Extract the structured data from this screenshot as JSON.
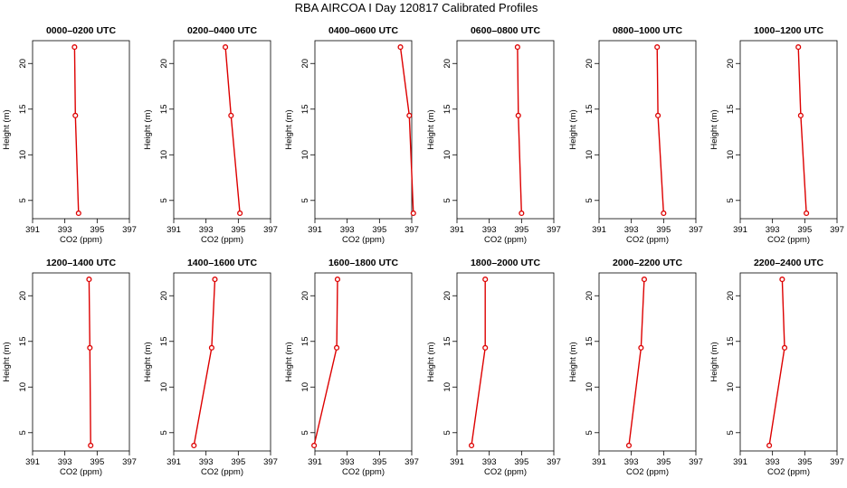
{
  "title": "RBA AIRCOA I  Day 120817  Calibrated Profiles",
  "colors": {
    "series": "#dd0000",
    "axis": "#000000",
    "background": "#ffffff"
  },
  "chart_data": [
    {
      "type": "line",
      "title": "0000–0200 UTC",
      "xlabel": "CO2 (ppm)",
      "ylabel": "Height (m)",
      "xlim": [
        391,
        397
      ],
      "ylim": [
        3,
        22.5
      ],
      "xticks": [
        391,
        393,
        395,
        397
      ],
      "yticks": [
        5,
        10,
        15,
        20
      ],
      "series": [
        {
          "x": [
            393.85,
            393.65,
            393.6
          ],
          "y": [
            3.6,
            14.3,
            21.8
          ]
        }
      ]
    },
    {
      "type": "line",
      "title": "0200–0400 UTC",
      "xlabel": "CO2 (ppm)",
      "ylabel": "Height (m)",
      "xlim": [
        391,
        397
      ],
      "ylim": [
        3,
        22.5
      ],
      "xticks": [
        391,
        393,
        395,
        397
      ],
      "yticks": [
        5,
        10,
        15,
        20
      ],
      "series": [
        {
          "x": [
            395.1,
            394.55,
            394.2
          ],
          "y": [
            3.6,
            14.3,
            21.8
          ]
        }
      ]
    },
    {
      "type": "line",
      "title": "0400–0600 UTC",
      "xlabel": "CO2 (ppm)",
      "ylabel": "Height (m)",
      "xlim": [
        391,
        397
      ],
      "ylim": [
        3,
        22.5
      ],
      "xticks": [
        391,
        393,
        395,
        397
      ],
      "yticks": [
        5,
        10,
        15,
        20
      ],
      "series": [
        {
          "x": [
            397.1,
            396.85,
            396.3
          ],
          "y": [
            3.6,
            14.3,
            21.8
          ]
        }
      ]
    },
    {
      "type": "line",
      "title": "0600–0800 UTC",
      "xlabel": "CO2 (ppm)",
      "ylabel": "Height (m)",
      "xlim": [
        391,
        397
      ],
      "ylim": [
        3,
        22.5
      ],
      "xticks": [
        391,
        393,
        395,
        397
      ],
      "yticks": [
        5,
        10,
        15,
        20
      ],
      "series": [
        {
          "x": [
            395.0,
            394.8,
            394.75
          ],
          "y": [
            3.6,
            14.3,
            21.8
          ]
        }
      ]
    },
    {
      "type": "line",
      "title": "0800–1000 UTC",
      "xlabel": "CO2 (ppm)",
      "ylabel": "Height (m)",
      "xlim": [
        391,
        397
      ],
      "ylim": [
        3,
        22.5
      ],
      "xticks": [
        391,
        393,
        395,
        397
      ],
      "yticks": [
        5,
        10,
        15,
        20
      ],
      "series": [
        {
          "x": [
            395.0,
            394.65,
            394.6
          ],
          "y": [
            3.6,
            14.3,
            21.8
          ]
        }
      ]
    },
    {
      "type": "line",
      "title": "1000–1200 UTC",
      "xlabel": "CO2 (ppm)",
      "ylabel": "Height (m)",
      "xlim": [
        391,
        397
      ],
      "ylim": [
        3,
        22.5
      ],
      "xticks": [
        391,
        393,
        395,
        397
      ],
      "yticks": [
        5,
        10,
        15,
        20
      ],
      "series": [
        {
          "x": [
            395.1,
            394.75,
            394.6
          ],
          "y": [
            3.6,
            14.3,
            21.8
          ]
        }
      ]
    },
    {
      "type": "line",
      "title": "1200–1400 UTC",
      "xlabel": "CO2 (ppm)",
      "ylabel": "Height (m)",
      "xlim": [
        391,
        397
      ],
      "ylim": [
        3,
        22.5
      ],
      "xticks": [
        391,
        393,
        395,
        397
      ],
      "yticks": [
        5,
        10,
        15,
        20
      ],
      "series": [
        {
          "x": [
            394.6,
            394.55,
            394.5
          ],
          "y": [
            3.6,
            14.3,
            21.8
          ]
        }
      ]
    },
    {
      "type": "line",
      "title": "1400–1600 UTC",
      "xlabel": "CO2 (ppm)",
      "ylabel": "Height (m)",
      "xlim": [
        391,
        397
      ],
      "ylim": [
        3,
        22.5
      ],
      "xticks": [
        391,
        393,
        395,
        397
      ],
      "yticks": [
        5,
        10,
        15,
        20
      ],
      "series": [
        {
          "x": [
            392.25,
            393.35,
            393.55
          ],
          "y": [
            3.6,
            14.3,
            21.8
          ]
        }
      ]
    },
    {
      "type": "line",
      "title": "1600–1800 UTC",
      "xlabel": "CO2 (ppm)",
      "ylabel": "Height (m)",
      "xlim": [
        391,
        397
      ],
      "ylim": [
        3,
        22.5
      ],
      "xticks": [
        391,
        393,
        395,
        397
      ],
      "yticks": [
        5,
        10,
        15,
        20
      ],
      "series": [
        {
          "x": [
            390.95,
            392.35,
            392.4
          ],
          "y": [
            3.6,
            14.3,
            21.8
          ]
        }
      ]
    },
    {
      "type": "line",
      "title": "1800–2000 UTC",
      "xlabel": "CO2 (ppm)",
      "ylabel": "Height (m)",
      "xlim": [
        391,
        397
      ],
      "ylim": [
        3,
        22.5
      ],
      "xticks": [
        391,
        393,
        395,
        397
      ],
      "yticks": [
        5,
        10,
        15,
        20
      ],
      "series": [
        {
          "x": [
            391.9,
            392.75,
            392.75
          ],
          "y": [
            3.6,
            14.3,
            21.8
          ]
        }
      ]
    },
    {
      "type": "line",
      "title": "2000–2200 UTC",
      "xlabel": "CO2 (ppm)",
      "ylabel": "Height (m)",
      "xlim": [
        391,
        397
      ],
      "ylim": [
        3,
        22.5
      ],
      "xticks": [
        391,
        393,
        395,
        397
      ],
      "yticks": [
        5,
        10,
        15,
        20
      ],
      "series": [
        {
          "x": [
            392.85,
            393.6,
            393.8
          ],
          "y": [
            3.6,
            14.3,
            21.8
          ]
        }
      ]
    },
    {
      "type": "line",
      "title": "2200–2400 UTC",
      "xlabel": "CO2 (ppm)",
      "ylabel": "Height (m)",
      "xlim": [
        391,
        397
      ],
      "ylim": [
        3,
        22.5
      ],
      "xticks": [
        391,
        393,
        395,
        397
      ],
      "yticks": [
        5,
        10,
        15,
        20
      ],
      "series": [
        {
          "x": [
            392.8,
            393.75,
            393.6
          ],
          "y": [
            3.6,
            14.3,
            21.8
          ]
        }
      ]
    }
  ]
}
